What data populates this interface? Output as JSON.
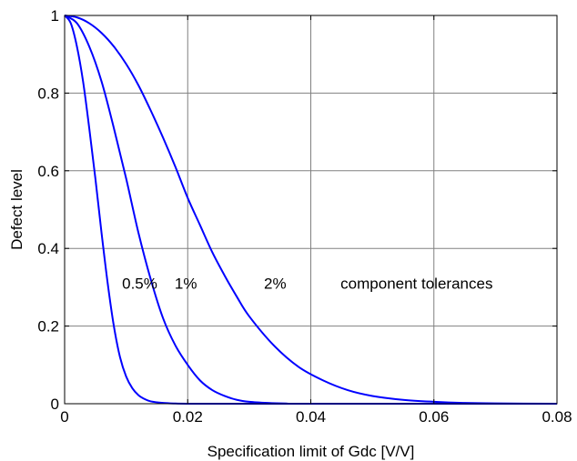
{
  "chart_data": {
    "type": "line",
    "title": "",
    "xlabel": "Specification limit of Gdc [V/V]",
    "ylabel": "Defect level",
    "xlim": [
      0,
      0.08
    ],
    "ylim": [
      0,
      1
    ],
    "x_ticks": [
      "0",
      "0.02",
      "0.04",
      "0.06",
      "0.08"
    ],
    "y_ticks": [
      "0",
      "0.2",
      "0.4",
      "0.6",
      "0.8",
      "1"
    ],
    "grid": true,
    "line_color": "#0000ff",
    "series": [
      {
        "name": "0.5%",
        "x": [
          0,
          0.001,
          0.002,
          0.003,
          0.004,
          0.005,
          0.006,
          0.007,
          0.008,
          0.009,
          0.01,
          0.011,
          0.012,
          0.013,
          0.014,
          0.016,
          0.018,
          0.02,
          0.025,
          0.08
        ],
        "y": [
          1.0,
          0.98,
          0.92,
          0.83,
          0.71,
          0.58,
          0.44,
          0.31,
          0.2,
          0.12,
          0.07,
          0.04,
          0.022,
          0.012,
          0.006,
          0.002,
          0.0005,
          0.0,
          0.0,
          0.0
        ]
      },
      {
        "name": "1%",
        "x": [
          0,
          0.002,
          0.004,
          0.006,
          0.008,
          0.01,
          0.012,
          0.014,
          0.016,
          0.018,
          0.02,
          0.022,
          0.024,
          0.026,
          0.028,
          0.03,
          0.033,
          0.036,
          0.04,
          0.08
        ],
        "y": [
          1.0,
          0.98,
          0.92,
          0.83,
          0.71,
          0.58,
          0.44,
          0.32,
          0.22,
          0.15,
          0.1,
          0.06,
          0.035,
          0.02,
          0.01,
          0.005,
          0.002,
          0.0005,
          0.0,
          0.0
        ]
      },
      {
        "name": "2%",
        "x": [
          0,
          0.002,
          0.004,
          0.006,
          0.008,
          0.01,
          0.012,
          0.014,
          0.016,
          0.018,
          0.02,
          0.022,
          0.024,
          0.026,
          0.028,
          0.03,
          0.034,
          0.038,
          0.042,
          0.046,
          0.05,
          0.055,
          0.06,
          0.065,
          0.07,
          0.08
        ],
        "y": [
          1.0,
          0.995,
          0.98,
          0.955,
          0.92,
          0.875,
          0.82,
          0.755,
          0.685,
          0.61,
          0.53,
          0.46,
          0.39,
          0.33,
          0.275,
          0.225,
          0.15,
          0.095,
          0.06,
          0.035,
          0.02,
          0.01,
          0.005,
          0.002,
          0.0008,
          0.0
        ]
      }
    ],
    "annotations": [
      {
        "text": "0.5%",
        "x": 0.0122,
        "y": 0.31
      },
      {
        "text": "1%",
        "x": 0.0197,
        "y": 0.31
      },
      {
        "text": "2%",
        "x": 0.0342,
        "y": 0.31
      },
      {
        "text": "component tolerances",
        "x": 0.0572,
        "y": 0.31
      }
    ]
  }
}
